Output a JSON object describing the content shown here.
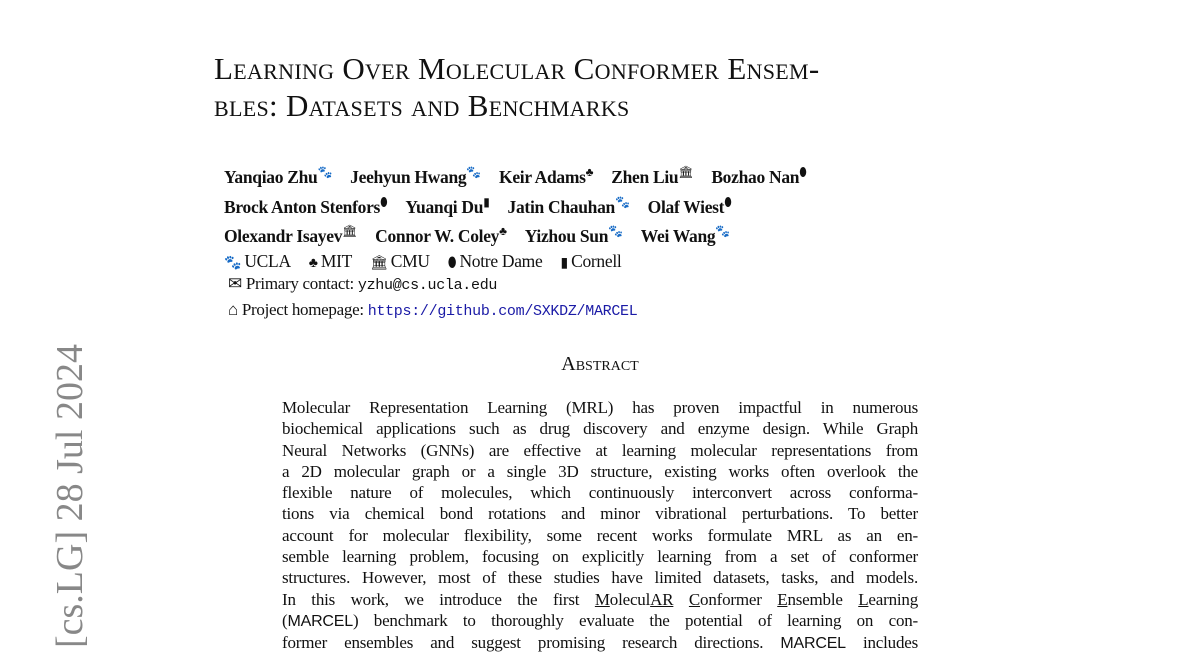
{
  "watermark": "[cs.LG]  28 Jul 2024",
  "title": [
    "Learning Over Molecular Conformer Ensem-",
    "bles: Datasets and Benchmarks"
  ],
  "authors": [
    [
      {
        "name": "Yanqiao Zhu",
        "icon": "paw-icon"
      },
      {
        "name": "Jeehyun Hwang",
        "icon": "paw-icon"
      },
      {
        "name": "Keir Adams",
        "icon": "tree-icon"
      },
      {
        "name": "Zhen Liu",
        "icon": "university-icon"
      },
      {
        "name": "Bozhao Nan",
        "icon": "football-icon"
      }
    ],
    [
      {
        "name": "Brock Anton Stenfors",
        "icon": "football-icon"
      },
      {
        "name": "Yuanqi Du",
        "icon": "book-icon"
      },
      {
        "name": "Jatin Chauhan",
        "icon": "paw-icon"
      },
      {
        "name": "Olaf Wiest",
        "icon": "football-icon"
      }
    ],
    [
      {
        "name": "Olexandr Isayev",
        "icon": "university-icon"
      },
      {
        "name": "Connor W. Coley",
        "icon": "tree-icon"
      },
      {
        "name": "Yizhou Sun",
        "icon": "paw-icon"
      },
      {
        "name": "Wei Wang",
        "icon": "paw-icon"
      }
    ]
  ],
  "affiliations": [
    {
      "name": "UCLA",
      "icon": "paw-icon"
    },
    {
      "name": "MIT",
      "icon": "tree-icon"
    },
    {
      "name": "CMU",
      "icon": "university-icon"
    },
    {
      "name": "Notre Dame",
      "icon": "football-icon"
    },
    {
      "name": "Cornell",
      "icon": "book-icon"
    }
  ],
  "contact": {
    "label": "Primary contact:",
    "email": "yzhu@cs.ucla.edu"
  },
  "homepage": {
    "label": "Project homepage:",
    "url": "https://github.com/SXKDZ/MARCEL"
  },
  "abstract_heading": "Abstract",
  "abstract_lines": [
    "Molecular Representation Learning (MRL) has proven impactful in numerous",
    "biochemical applications such as drug discovery and enzyme design. While Graph",
    "Neural Networks (GNNs) are effective at learning molecular representations from",
    "a 2D molecular graph or a single 3D structure, existing works often overlook the",
    "flexible nature of molecules, which continuously interconvert across conforma-",
    "tions via chemical bond rotations and minor vibrational perturbations. To better",
    "account for molecular flexibility, some recent works formulate MRL as an en-",
    "semble learning problem, focusing on explicitly learning from a set of conformer",
    "structures. However, most of these studies have limited datasets, tasks, and models.",
    "In this work, we introduce the first MoleculAR Conformer Ensemble Learning",
    "(MARCEL) benchmark to thoroughly evaluate the potential of learning on con-",
    "former ensembles and suggest promising research directions. MARCEL includes"
  ]
}
